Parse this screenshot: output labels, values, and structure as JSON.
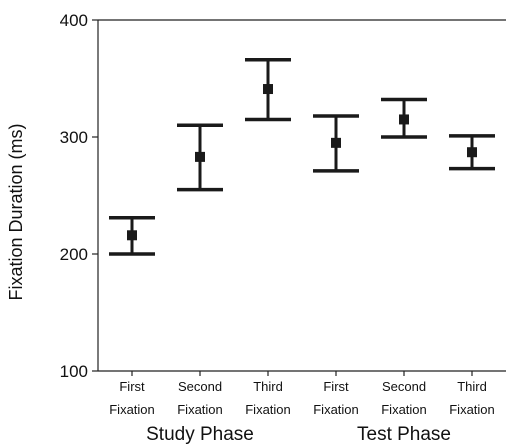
{
  "chart_data": {
    "type": "scatter",
    "ylabel": "Fixation Duration (ms)",
    "xlabel": "",
    "ylim": [
      100,
      400
    ],
    "yticks": [
      100,
      200,
      300,
      400
    ],
    "ytick_labels": [
      "100",
      "200",
      "300",
      "400"
    ],
    "grid": false,
    "categories": [
      {
        "line1": "First",
        "line2": "Fixation",
        "group": "Study Phase"
      },
      {
        "line1": "Second",
        "line2": "Fixation",
        "group": "Study Phase"
      },
      {
        "line1": "Third",
        "line2": "Fixation",
        "group": "Study Phase"
      },
      {
        "line1": "First",
        "line2": "Fixation",
        "group": "Test Phase"
      },
      {
        "line1": "Second",
        "line2": "Fixation",
        "group": "Test Phase"
      },
      {
        "line1": "Third",
        "line2": "Fixation",
        "group": "Test Phase"
      }
    ],
    "groups": [
      "Study Phase",
      "Test Phase"
    ],
    "series": [
      {
        "values": [
          216,
          283,
          341,
          295,
          315,
          287
        ],
        "lower": [
          200,
          255,
          315,
          271,
          300,
          273
        ],
        "upper": [
          231,
          310,
          366,
          318,
          332,
          301
        ]
      }
    ],
    "marker_color": "#1a1a1a"
  }
}
